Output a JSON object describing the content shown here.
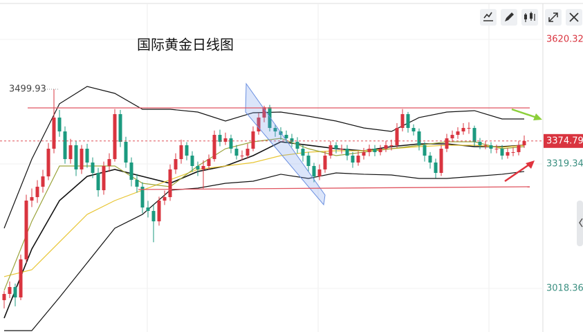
{
  "chart_data": {
    "type": "candlestick",
    "title": "国际黄金日线图",
    "ylim": [
      2913.0,
      3715.6
    ],
    "yticks": [
      3018.36,
      3319.34,
      3620.32
    ],
    "up_color": "#d9343f",
    "down_color": "#1b9a7f",
    "open": [
      2990.0,
      3005.0,
      3021.7,
      2996.6,
      3088.6,
      3230.7,
      3239.1,
      3264.2,
      3289.2,
      3356.1,
      3431.4,
      3397.9,
      3331.0,
      3364.5,
      3306.0,
      3356.1,
      3322.7,
      3297.6,
      3255.8,
      3314.3,
      3331.0,
      3439.7,
      3372.8,
      3322.7,
      3280.9,
      3264.2,
      3214.0,
      3205.6,
      3180.6,
      3230.7,
      3239.1,
      3306.0,
      3331.0,
      3364.5,
      3339.4,
      3314.3,
      3306.0,
      3314.3,
      3331.0,
      3389.6,
      3372.8,
      3381.2,
      3356.1,
      3339.4,
      3339.4,
      3356.1,
      3397.9,
      3431.4,
      3456.4,
      3406.3,
      3397.9,
      3389.6,
      3381.2,
      3372.8,
      3356.1,
      3339.4,
      3314.3,
      3289.2,
      3306.0,
      3339.4,
      3364.5,
      3356.1,
      3356.1,
      3339.4,
      3322.7,
      3339.4,
      3347.8,
      3356.1,
      3347.8,
      3356.1,
      3364.5,
      3364.5,
      3406.3,
      3439.7,
      3406.3,
      3397.9,
      3364.5,
      3339.4,
      3322.7,
      3297.6,
      3356.1,
      3381.2,
      3389.6,
      3397.9,
      3406.3,
      3406.3,
      3372.8,
      3364.5,
      3364.5,
      3356.1,
      3356.1,
      3339.4,
      3347.8,
      3347.8,
      3364.5
    ],
    "high": [
      3012,
      3035,
      3030,
      3100,
      3245,
      3260,
      3280,
      3305,
      3370,
      3499.93,
      3450,
      3410,
      3380,
      3375,
      3365,
      3368,
      3335,
      3310,
      3325,
      3345,
      3452,
      3450,
      3385,
      3335,
      3295,
      3275,
      3230,
      3220,
      3240,
      3255,
      3318,
      3345,
      3378,
      3372,
      3350,
      3325,
      3328,
      3342,
      3400,
      3402,
      3395,
      3390,
      3365,
      3352,
      3368,
      3410,
      3442,
      3460,
      3462,
      3415,
      3408,
      3400,
      3392,
      3384,
      3365,
      3348,
      3322,
      3318,
      3350,
      3375,
      3372,
      3366,
      3365,
      3348,
      3350,
      3358,
      3366,
      3365,
      3365,
      3375,
      3378,
      3418,
      3452,
      3445,
      3415,
      3405,
      3372,
      3348,
      3332,
      3365,
      3392,
      3400,
      3408,
      3418,
      3420,
      3412,
      3382,
      3375,
      3372,
      3366,
      3365,
      3358,
      3360,
      3375,
      3388
    ],
    "low": [
      2970,
      2995,
      2975,
      2990,
      3080,
      3215,
      3225,
      3250,
      3280,
      3345,
      3385,
      3320,
      3320,
      3290,
      3295,
      3310,
      3285,
      3240,
      3245,
      3300,
      3325,
      3360,
      3310,
      3265,
      3250,
      3200,
      3190,
      3130,
      3170,
      3220,
      3230,
      3295,
      3320,
      3328,
      3300,
      3290,
      3260,
      3305,
      3325,
      3362,
      3365,
      3345,
      3330,
      3328,
      3332,
      3350,
      3390,
      3420,
      3398,
      3385,
      3378,
      3370,
      3360,
      3345,
      3325,
      3300,
      3275,
      3280,
      3298,
      3332,
      3345,
      3344,
      3328,
      3310,
      3315,
      3330,
      3338,
      3338,
      3340,
      3348,
      3352,
      3358,
      3398,
      3395,
      3388,
      3352,
      3325,
      3308,
      3285,
      3290,
      3348,
      3372,
      3380,
      3390,
      3392,
      3362,
      3355,
      3355,
      3345,
      3345,
      3330,
      3332,
      3338,
      3340,
      3358
    ],
    "close": [
      3005.0,
      3021.7,
      2996.6,
      3088.6,
      3230.7,
      3239.1,
      3264.2,
      3289.2,
      3356.1,
      3431.4,
      3397.9,
      3331.0,
      3364.5,
      3306.0,
      3356.1,
      3322.7,
      3297.6,
      3255.8,
      3314.3,
      3331.0,
      3439.7,
      3372.8,
      3322.7,
      3280.9,
      3264.2,
      3214.0,
      3205.6,
      3180.6,
      3230.7,
      3239.1,
      3306.0,
      3331.0,
      3364.5,
      3339.4,
      3314.3,
      3306.0,
      3314.3,
      3331.0,
      3389.6,
      3372.8,
      3381.2,
      3356.1,
      3339.4,
      3339.4,
      3356.1,
      3397.9,
      3431.4,
      3456.4,
      3406.3,
      3397.9,
      3389.6,
      3381.2,
      3372.8,
      3356.1,
      3339.4,
      3314.3,
      3289.2,
      3306.0,
      3339.4,
      3364.5,
      3356.1,
      3356.1,
      3339.4,
      3322.7,
      3339.4,
      3347.8,
      3356.1,
      3347.8,
      3356.1,
      3364.5,
      3364.5,
      3406.3,
      3439.7,
      3406.3,
      3397.9,
      3364.5,
      3339.4,
      3322.7,
      3297.6,
      3356.1,
      3381.2,
      3389.6,
      3397.9,
      3406.3,
      3406.3,
      3372.8,
      3364.5,
      3364.5,
      3356.1,
      3356.1,
      3339.4,
      3347.8,
      3347.8,
      3364.5,
      3374.79
    ],
    "overlays": {
      "x": [
        0,
        5,
        10,
        15,
        20,
        25,
        30,
        35,
        40,
        45,
        50,
        55,
        60,
        65,
        70,
        75,
        80,
        85,
        90,
        94
      ],
      "lines": [
        {
          "color": "#111111",
          "values": [
            3163.8,
            3331.0,
            3464.8,
            3506.6,
            3489.9,
            3451.4,
            3451.4,
            3444.7,
            3423.0,
            3443.1,
            3444.7,
            3434.7,
            3423.0,
            3406.3,
            3397.9,
            3431.4,
            3444.7,
            3448.1,
            3428.0,
            3428.0
          ]
        },
        {
          "color": "#111111",
          "values": [
            2946.5,
            3113.7,
            3230.7,
            3289.2,
            3306.0,
            3289.2,
            3272.5,
            3301.0,
            3314.3,
            3339.4,
            3372.8,
            3364.5,
            3356.1,
            3351.1,
            3361.1,
            3367.8,
            3367.8,
            3361.1,
            3361.1,
            3364.5
          ]
        },
        {
          "color": "#111111",
          "values": [
            2916.4,
            2916.4,
            2996.6,
            3080.2,
            3163.8,
            3197.3,
            3255.8,
            3260.8,
            3272.5,
            3277.5,
            3294.3,
            3284.2,
            3297.6,
            3294.3,
            3292.6,
            3284.2,
            3284.2,
            3289.2,
            3294.3,
            3301.0
          ]
        },
        {
          "color": "#e8c532",
          "values": [
            3046.8,
            3063.5,
            3130.4,
            3197.3,
            3230.7,
            3255.8,
            3280.9,
            3306.0,
            3314.3,
            3322.7,
            3339.4,
            3347.8,
            3351.1,
            3351.1,
            3356.1,
            3361.1,
            3364.5,
            3364.5,
            3359.5,
            3364.5
          ]
        },
        {
          "color": "#9aa33a",
          "values": [
            3013.4,
            3180.6,
            3314.3,
            3314.3,
            3314.3,
            3272.5,
            3264.2,
            3314.3,
            3356.1,
            3372.8,
            3381.2,
            3356.1,
            3339.4,
            3347.8,
            3356.1,
            3364.5,
            3372.8,
            3372.8,
            3356.1,
            3361.1
          ]
        }
      ]
    },
    "max_label": 3499.93,
    "last_price": 3374.79
  }
}
